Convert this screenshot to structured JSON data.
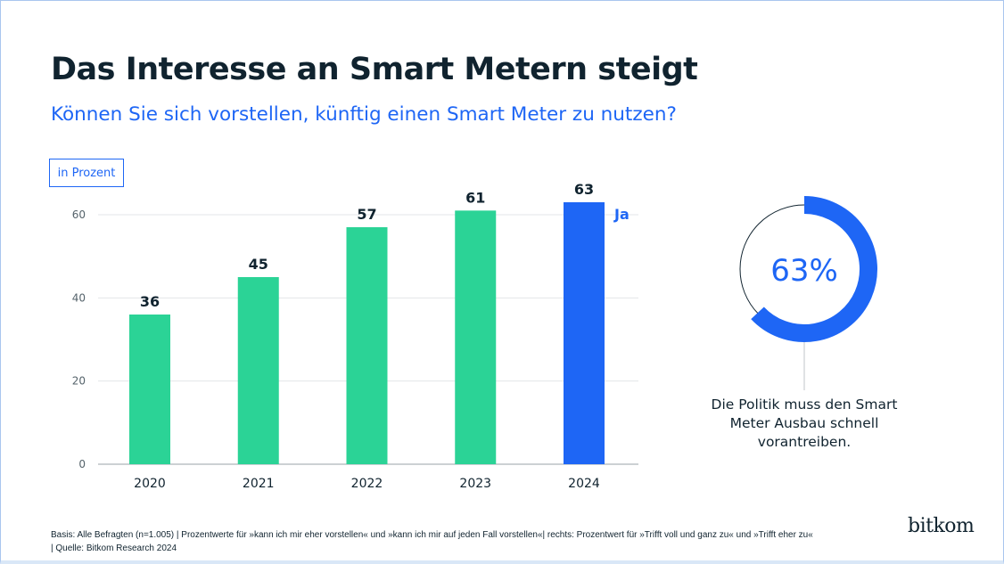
{
  "title": "Das Interesse an Smart Metern steigt",
  "subtitle": "Können Sie sich vorstellen, künftig einen Smart Meter zu nutzen?",
  "unit_label": "in Prozent",
  "chart_data": [
    {
      "type": "bar",
      "categories": [
        "2020",
        "2021",
        "2022",
        "2023",
        "2024"
      ],
      "values": [
        36,
        45,
        57,
        61,
        63
      ],
      "yticks": [
        0,
        20,
        40,
        60
      ],
      "ylim": [
        0,
        66
      ],
      "grid": true,
      "colors": [
        "#2bd396",
        "#2bd396",
        "#2bd396",
        "#2bd396",
        "#1e66f5"
      ],
      "annotation": "Ja"
    },
    {
      "type": "pie",
      "value": 63,
      "label": "63%",
      "color": "#1e66f5"
    }
  ],
  "note": "Die Politik muss den Smart Meter Ausbau schnell vorantreiben.",
  "footer": {
    "line1": "Basis: Alle Befragten (n=1.005) | Prozentwerte für »kann ich mir eher vorstellen« und »kann ich mir auf jeden Fall vorstellen«| rechts: Prozentwert für »Trifft voll und ganz zu« und  »Trifft eher zu«",
    "line2": "| Quelle: Bitkom Research 2024"
  },
  "logo": "bitkom"
}
